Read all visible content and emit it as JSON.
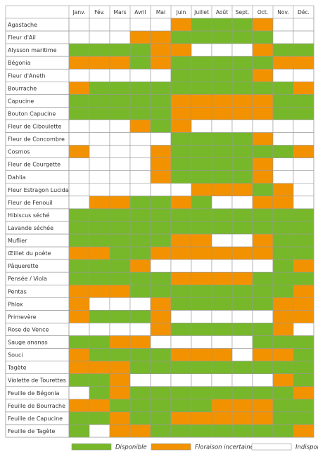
{
  "table": {
    "months": [
      "Janv.",
      "Fév.",
      "Mars",
      "Avril",
      "Mai",
      "Juin",
      "Juillet",
      "Août",
      "Sept.",
      "Oct.",
      "Nov.",
      "Déc."
    ],
    "rows": [
      {
        "name": "Agastache",
        "cells": [
          "#ffffff",
          "#ffffff",
          "#ffffff",
          "#ffffff",
          "#ffffff",
          "#f39200",
          "#76b82a",
          "#76b82a",
          "#76b82a",
          "#f39200",
          "#ffffff",
          "#ffffff"
        ]
      },
      {
        "name": "Fleur d'Ail",
        "cells": [
          "#ffffff",
          "#ffffff",
          "#ffffff",
          "#f39200",
          "#f39200",
          "#76b82a",
          "#76b82a",
          "#76b82a",
          "#76b82a",
          "#76b82a",
          "#ffffff",
          "#ffffff"
        ]
      },
      {
        "name": "Alysson maritime",
        "cells": [
          "#76b82a",
          "#76b82a",
          "#76b82a",
          "#76b82a",
          "#f39200",
          "#f39200",
          "#ffffff",
          "#ffffff",
          "#ffffff",
          "#f39200",
          "#76b82a",
          "#76b82a"
        ]
      },
      {
        "name": "Bégonia",
        "cells": [
          "#f39200",
          "#f39200",
          "#f39200",
          "#76b82a",
          "#f39200",
          "#76b82a",
          "#76b82a",
          "#76b82a",
          "#76b82a",
          "#76b82a",
          "#f39200",
          "#f39200"
        ]
      },
      {
        "name": "Fleur d'Aneth",
        "cells": [
          "#ffffff",
          "#ffffff",
          "#ffffff",
          "#ffffff",
          "#ffffff",
          "#76b82a",
          "#76b82a",
          "#76b82a",
          "#76b82a",
          "#f39200",
          "#ffffff",
          "#ffffff"
        ]
      },
      {
        "name": "Bourrache",
        "cells": [
          "#f39200",
          "#76b82a",
          "#76b82a",
          "#76b82a",
          "#76b82a",
          "#76b82a",
          "#76b82a",
          "#76b82a",
          "#76b82a",
          "#76b82a",
          "#76b82a",
          "#f39200"
        ]
      },
      {
        "name": "Capucine",
        "cells": [
          "#76b82a",
          "#76b82a",
          "#76b82a",
          "#76b82a",
          "#76b82a",
          "#f39200",
          "#f39200",
          "#f39200",
          "#f39200",
          "#f39200",
          "#76b82a",
          "#76b82a"
        ]
      },
      {
        "name": "Bouton Capucine",
        "cells": [
          "#76b82a",
          "#76b82a",
          "#76b82a",
          "#76b82a",
          "#76b82a",
          "#f39200",
          "#f39200",
          "#f39200",
          "#f39200",
          "#f39200",
          "#76b82a",
          "#76b82a"
        ]
      },
      {
        "name": "Fleur de Ciboulette",
        "cells": [
          "#ffffff",
          "#ffffff",
          "#ffffff",
          "#f39200",
          "#76b82a",
          "#f39200",
          "#ffffff",
          "#ffffff",
          "#ffffff",
          "#ffffff",
          "#ffffff",
          "#ffffff"
        ]
      },
      {
        "name": "Fleur de Concombre",
        "cells": [
          "#ffffff",
          "#ffffff",
          "#ffffff",
          "#ffffff",
          "#ffffff",
          "#76b82a",
          "#76b82a",
          "#76b82a",
          "#76b82a",
          "#f39200",
          "#ffffff",
          "#ffffff"
        ]
      },
      {
        "name": "Cosmos",
        "cells": [
          "#f39200",
          "#ffffff",
          "#ffffff",
          "#ffffff",
          "#f39200",
          "#76b82a",
          "#76b82a",
          "#76b82a",
          "#76b82a",
          "#76b82a",
          "#76b82a",
          "#f39200"
        ]
      },
      {
        "name": "Fleur de Courgette",
        "cells": [
          "#ffffff",
          "#ffffff",
          "#ffffff",
          "#ffffff",
          "#f39200",
          "#76b82a",
          "#76b82a",
          "#76b82a",
          "#76b82a",
          "#f39200",
          "#ffffff",
          "#ffffff"
        ]
      },
      {
        "name": "Dahlia",
        "cells": [
          "#ffffff",
          "#ffffff",
          "#ffffff",
          "#ffffff",
          "#f39200",
          "#76b82a",
          "#76b82a",
          "#76b82a",
          "#76b82a",
          "#f39200",
          "#ffffff",
          "#ffffff"
        ]
      },
      {
        "name": "Fleur Estragon Lucida",
        "cells": [
          "#ffffff",
          "#ffffff",
          "#ffffff",
          "#ffffff",
          "#ffffff",
          "#ffffff",
          "#f39200",
          "#f39200",
          "#f39200",
          "#76b82a",
          "#f39200",
          "#ffffff"
        ]
      },
      {
        "name": "Fleur de Fenouil",
        "cells": [
          "#ffffff",
          "#f39200",
          "#f39200",
          "#76b82a",
          "#76b82a",
          "#f39200",
          "#76b82a",
          "#ffffff",
          "#ffffff",
          "#f39200",
          "#f39200",
          "#ffffff"
        ]
      },
      {
        "name": "Hibiscus séché",
        "cells": [
          "#76b82a",
          "#76b82a",
          "#76b82a",
          "#76b82a",
          "#76b82a",
          "#76b82a",
          "#76b82a",
          "#76b82a",
          "#76b82a",
          "#76b82a",
          "#76b82a",
          "#76b82a"
        ]
      },
      {
        "name": "Lavande séchée",
        "cells": [
          "#76b82a",
          "#76b82a",
          "#76b82a",
          "#76b82a",
          "#76b82a",
          "#76b82a",
          "#76b82a",
          "#76b82a",
          "#76b82a",
          "#76b82a",
          "#76b82a",
          "#76b82a"
        ]
      },
      {
        "name": "Muflier",
        "cells": [
          "#76b82a",
          "#76b82a",
          "#76b82a",
          "#76b82a",
          "#76b82a",
          "#f39200",
          "#f39200",
          "#ffffff",
          "#ffffff",
          "#f39200",
          "#76b82a",
          "#76b82a"
        ]
      },
      {
        "name": "Œillet du poète",
        "cells": [
          "#f39200",
          "#f39200",
          "#76b82a",
          "#76b82a",
          "#f39200",
          "#f39200",
          "#f39200",
          "#f39200",
          "#f39200",
          "#f39200",
          "#76b82a",
          "#76b82a"
        ]
      },
      {
        "name": "Pâquerette",
        "cells": [
          "#76b82a",
          "#76b82a",
          "#76b82a",
          "#f39200",
          "#ffffff",
          "#ffffff",
          "#ffffff",
          "#ffffff",
          "#ffffff",
          "#ffffff",
          "#76b82a",
          "#f39200"
        ]
      },
      {
        "name": "Pensée / Viola",
        "cells": [
          "#76b82a",
          "#76b82a",
          "#76b82a",
          "#76b82a",
          "#76b82a",
          "#f39200",
          "#f39200",
          "#f39200",
          "#f39200",
          "#76b82a",
          "#76b82a",
          "#76b82a"
        ]
      },
      {
        "name": "Pentas",
        "cells": [
          "#f39200",
          "#f39200",
          "#f39200",
          "#76b82a",
          "#76b82a",
          "#76b82a",
          "#76b82a",
          "#76b82a",
          "#76b82a",
          "#76b82a",
          "#76b82a",
          "#f39200"
        ]
      },
      {
        "name": "Phlox",
        "cells": [
          "#f39200",
          "#ffffff",
          "#ffffff",
          "#ffffff",
          "#f39200",
          "#76b82a",
          "#76b82a",
          "#76b82a",
          "#76b82a",
          "#76b82a",
          "#f39200",
          "#f39200"
        ]
      },
      {
        "name": "Primevère",
        "cells": [
          "#f39200",
          "#76b82a",
          "#76b82a",
          "#76b82a",
          "#f39200",
          "#ffffff",
          "#ffffff",
          "#ffffff",
          "#ffffff",
          "#ffffff",
          "#f39200",
          "#f39200"
        ]
      },
      {
        "name": "Rose de Vence",
        "cells": [
          "#ffffff",
          "#ffffff",
          "#ffffff",
          "#ffffff",
          "#f39200",
          "#76b82a",
          "#76b82a",
          "#76b82a",
          "#76b82a",
          "#76b82a",
          "#f39200",
          "#ffffff"
        ]
      },
      {
        "name": "Sauge ananas",
        "cells": [
          "#76b82a",
          "#76b82a",
          "#f39200",
          "#f39200",
          "#ffffff",
          "#ffffff",
          "#ffffff",
          "#ffffff",
          "#ffffff",
          "#76b82a",
          "#76b82a",
          "#76b82a"
        ]
      },
      {
        "name": "Souci",
        "cells": [
          "#f39200",
          "#76b82a",
          "#76b82a",
          "#76b82a",
          "#76b82a",
          "#f39200",
          "#f39200",
          "#f39200",
          "#ffffff",
          "#f39200",
          "#f39200",
          "#76b82a"
        ]
      },
      {
        "name": "Tagète",
        "cells": [
          "#f39200",
          "#f39200",
          "#f39200",
          "#76b82a",
          "#76b82a",
          "#76b82a",
          "#76b82a",
          "#76b82a",
          "#76b82a",
          "#76b82a",
          "#76b82a",
          "#76b82a"
        ]
      },
      {
        "name": "Violette de Tourettes",
        "cells": [
          "#76b82a",
          "#76b82a",
          "#f39200",
          "#ffffff",
          "#ffffff",
          "#ffffff",
          "#ffffff",
          "#ffffff",
          "#ffffff",
          "#ffffff",
          "#f39200",
          "#76b82a"
        ]
      },
      {
        "name": "Feuille de Bégonia",
        "cells": [
          "#ffffff",
          "#76b82a",
          "#f39200",
          "#76b82a",
          "#76b82a",
          "#76b82a",
          "#76b82a",
          "#76b82a",
          "#76b82a",
          "#76b82a",
          "#76b82a",
          "#f39200"
        ]
      },
      {
        "name": "Feuille de Bourrache",
        "cells": [
          "#f39200",
          "#f39200",
          "#76b82a",
          "#76b82a",
          "#76b82a",
          "#76b82a",
          "#76b82a",
          "#f39200",
          "#f39200",
          "#f39200",
          "#76b82a",
          "#76b82a"
        ]
      },
      {
        "name": "Feuille de Capucine",
        "cells": [
          "#76b82a",
          "#76b82a",
          "#f39200",
          "#76b82a",
          "#76b82a",
          "#f39200",
          "#f39200",
          "#f39200",
          "#f39200",
          "#f39200",
          "#76b82a",
          "#76b82a"
        ]
      },
      {
        "name": "Feuille de Tagète",
        "cells": [
          "#76b82a",
          "#ffffff",
          "#f39200",
          "#f39200",
          "#76b82a",
          "#76b82a",
          "#76b82a",
          "#76b82a",
          "#76b82a",
          "#76b82a",
          "#76b82a",
          "#f39200"
        ]
      }
    ]
  },
  "legend": [
    {
      "label": "Disponible",
      "color": "#76b82a"
    },
    {
      "label": "Floraison incertaine",
      "color": "#f39200"
    },
    {
      "label": "Indisponible",
      "color": "#ffffff"
    }
  ]
}
